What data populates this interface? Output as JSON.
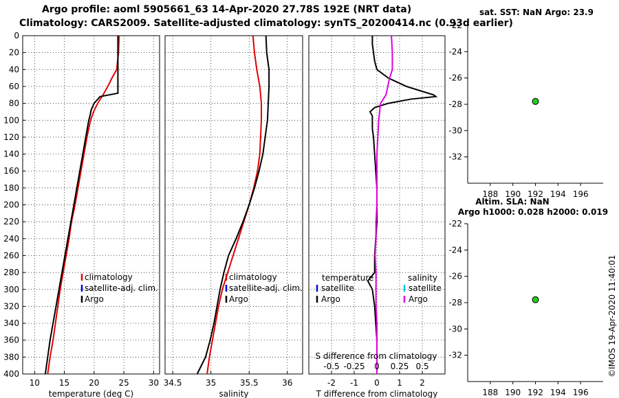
{
  "header": {
    "title_line1": "Argo profile: aoml 5905661_63 14-Apr-2020 27.78S 192E (NRT data)",
    "title_line2": "Climatology: CARS2009. Satellite-adjusted climatology: synTS_20200414.nc (0.93d earlier)"
  },
  "stamp": "©IMOS 19-Apr-2020 11:40:01",
  "colors": {
    "climatology": "#e00000",
    "satellite": "#0000dd",
    "argo": "#000000",
    "salinity_diff": "#dd00dd",
    "salinity_sat": "#00c8e6",
    "marker": "#22cc22"
  },
  "chart_data": [
    {
      "type": "line",
      "name": "temperature-profile",
      "xlabel": "temperature (deg C)",
      "ylabel": "",
      "xlim": [
        8,
        31
      ],
      "ylim": [
        400,
        0
      ],
      "xticks": [
        10,
        15,
        20,
        25,
        30
      ],
      "yticks": [
        0,
        20,
        40,
        60,
        80,
        100,
        120,
        140,
        160,
        180,
        200,
        220,
        240,
        260,
        280,
        300,
        320,
        340,
        360,
        380,
        400
      ],
      "grid": true,
      "legend": [
        "climatology",
        "satellite-adj. clim.",
        "Argo"
      ],
      "series": [
        {
          "name": "climatology",
          "color": "#e00000",
          "depth": [
            0,
            20,
            40,
            50,
            60,
            70,
            80,
            90,
            100,
            120,
            140,
            160,
            180,
            200,
            220,
            240,
            260,
            280,
            300,
            320,
            340,
            360,
            380,
            400
          ],
          "values": [
            24.2,
            24.1,
            23.8,
            23.0,
            22.3,
            21.5,
            20.6,
            19.9,
            19.4,
            18.8,
            18.3,
            17.8,
            17.3,
            16.8,
            16.2,
            15.8,
            15.3,
            14.8,
            14.3,
            13.9,
            13.5,
            13.1,
            12.6,
            12.2
          ]
        },
        {
          "name": "Argo",
          "color": "#000000",
          "depth": [
            0,
            20,
            40,
            60,
            68,
            72,
            80,
            88,
            95,
            100,
            120,
            140,
            160,
            180,
            200,
            220,
            240,
            260,
            280,
            300,
            320,
            340,
            360,
            380,
            400
          ],
          "values": [
            24.0,
            24.0,
            24.0,
            24.0,
            24.0,
            21.0,
            20.0,
            19.5,
            19.3,
            19.1,
            18.6,
            18.1,
            17.6,
            17.1,
            16.6,
            16.1,
            15.6,
            15.1,
            14.6,
            14.1,
            13.6,
            13.1,
            12.6,
            12.2,
            11.8
          ]
        }
      ]
    },
    {
      "type": "line",
      "name": "salinity-profile",
      "xlabel": "salinity",
      "xlim": [
        34.4,
        36.2
      ],
      "ylim": [
        400,
        0
      ],
      "xticks": [
        34.5,
        35,
        35.5,
        36
      ],
      "xtick_labels": [
        "34.5",
        "35",
        "35.5",
        "36"
      ],
      "grid": true,
      "legend": [
        "climatology",
        "satellite-adj. clim.",
        "Argo"
      ],
      "series": [
        {
          "name": "climatology",
          "color": "#e00000",
          "depth": [
            0,
            20,
            40,
            60,
            80,
            100,
            120,
            140,
            160,
            180,
            200,
            220,
            240,
            260,
            280,
            300,
            320,
            340,
            360,
            380,
            400
          ],
          "values": [
            35.55,
            35.57,
            35.6,
            35.64,
            35.66,
            35.66,
            35.65,
            35.64,
            35.61,
            35.56,
            35.5,
            35.43,
            35.36,
            35.29,
            35.22,
            35.15,
            35.1,
            35.06,
            35.02,
            34.98,
            34.95
          ]
        },
        {
          "name": "Argo",
          "color": "#000000",
          "depth": [
            0,
            20,
            40,
            60,
            80,
            100,
            120,
            140,
            160,
            180,
            200,
            220,
            240,
            260,
            280,
            300,
            320,
            340,
            360,
            380,
            400
          ],
          "values": [
            35.72,
            35.73,
            35.76,
            35.76,
            35.75,
            35.74,
            35.71,
            35.68,
            35.63,
            35.57,
            35.5,
            35.42,
            35.33,
            35.23,
            35.17,
            35.12,
            35.08,
            35.04,
            34.99,
            34.93,
            34.82
          ]
        }
      ]
    },
    {
      "type": "line",
      "name": "difference-profile",
      "xlabel": "T difference from climatology",
      "xlim": [
        -3,
        3
      ],
      "ylim": [
        400,
        0
      ],
      "xticks": [
        -2,
        -1,
        0,
        1,
        2
      ],
      "xtick_labels": [
        "-2",
        "-1",
        "0",
        "1",
        "2"
      ],
      "secondary_title": "S difference from climatology",
      "secondary_ticks": [
        -0.5,
        -0.25,
        0,
        0.25,
        0.5
      ],
      "secondary_tick_labels": [
        "-0.5",
        "-0.25",
        "0",
        "0.25",
        "0.5"
      ],
      "secondary_scale": 0.25,
      "grid": true,
      "legend_temperature_title": "temperature",
      "legend_temperature": [
        "satellite",
        "Argo"
      ],
      "legend_salinity_title": "salinity",
      "legend_salinity": [
        "satellite",
        "Argo"
      ],
      "series": [
        {
          "name": "T difference (Argo)",
          "color": "#000000",
          "depth": [
            0,
            10,
            20,
            30,
            40,
            50,
            55,
            60,
            65,
            70,
            72,
            75,
            80,
            85,
            90,
            95,
            100,
            110,
            120,
            140,
            160,
            180,
            200,
            220,
            240,
            260,
            280,
            290,
            300,
            320,
            340,
            360,
            380,
            400
          ],
          "values": [
            -0.2,
            -0.2,
            -0.15,
            -0.1,
            0.0,
            0.5,
            0.9,
            1.3,
            1.9,
            2.5,
            2.6,
            1.5,
            0.5,
            -0.1,
            -0.3,
            -0.2,
            -0.2,
            -0.2,
            -0.15,
            -0.1,
            -0.05,
            0.0,
            0.0,
            0.0,
            -0.05,
            -0.1,
            -0.1,
            -0.4,
            -0.2,
            -0.1,
            -0.05,
            0.0,
            0.0,
            0.0
          ]
        },
        {
          "name": "S difference (Argo)",
          "color": "#dd00dd",
          "depth": [
            0,
            20,
            40,
            50,
            60,
            70,
            80,
            100,
            120,
            140,
            160,
            180,
            200,
            220,
            240,
            260,
            280,
            300,
            320,
            340,
            360,
            380,
            400
          ],
          "values": [
            0.16,
            0.17,
            0.17,
            0.14,
            0.12,
            0.1,
            0.04,
            0.02,
            0.01,
            0.0,
            0.0,
            0.0,
            0.0,
            -0.01,
            -0.01,
            -0.02,
            -0.01,
            -0.01,
            -0.01,
            0.0,
            0.0,
            0.0,
            0.0
          ]
        }
      ]
    },
    {
      "type": "scatter",
      "name": "sst-map",
      "title": "sat. SST: NaN Argo: 23.9",
      "xlim": [
        186,
        198
      ],
      "ylim": [
        -34,
        -22
      ],
      "xticks": [
        188,
        190,
        192,
        194,
        196
      ],
      "yticks": [
        -22,
        -24,
        -26,
        -28,
        -30,
        -32
      ],
      "points": [
        {
          "x": 192,
          "y": -27.78
        }
      ]
    },
    {
      "type": "scatter",
      "name": "sla-map",
      "title_line1": "Altim. SLA: NaN",
      "title_line2": "Argo h1000: 0.028 h2000: 0.019",
      "xlim": [
        186,
        198
      ],
      "ylim": [
        -34,
        -22
      ],
      "xticks": [
        188,
        190,
        192,
        194,
        196
      ],
      "yticks": [
        -22,
        -24,
        -26,
        -28,
        -30,
        -32
      ],
      "points": [
        {
          "x": 192,
          "y": -27.78
        }
      ]
    }
  ]
}
